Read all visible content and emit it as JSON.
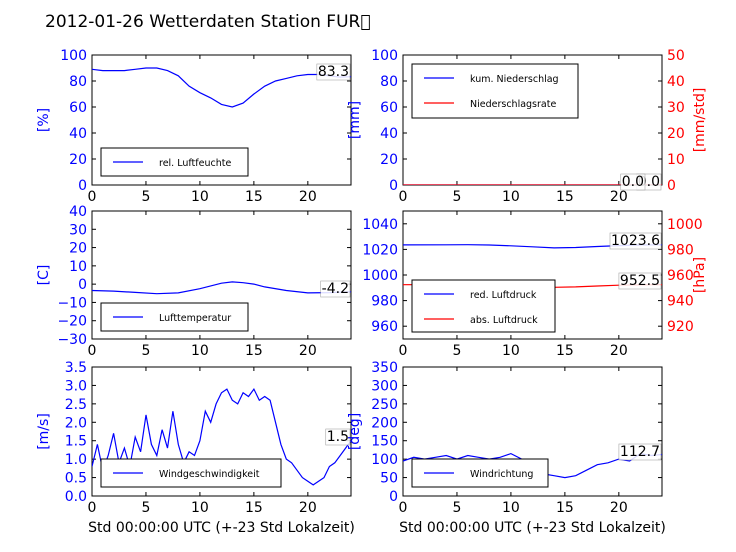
{
  "title": "2012-01-26 Wetterdaten Station FUR\u0000",
  "chart_data": [
    {
      "type": "line",
      "ylabel": "[%]",
      "xlabel": "",
      "xlim": [
        0,
        24
      ],
      "ylim": [
        0,
        100
      ],
      "xticks": [
        "0",
        "5",
        "10",
        "15",
        "20"
      ],
      "yticks": [
        "0",
        "20",
        "40",
        "60",
        "80",
        "100"
      ],
      "legend_position": "lower-left",
      "series": [
        {
          "name": "rel. Luftfeuchte",
          "color": "#0000ff",
          "x": [
            0,
            1,
            2,
            3,
            4,
            5,
            6,
            7,
            8,
            9,
            10,
            11,
            12,
            13,
            14,
            15,
            16,
            17,
            18,
            19,
            20,
            21,
            22,
            23,
            24
          ],
          "y": [
            89,
            88,
            88,
            88,
            89,
            90,
            90,
            88,
            84,
            76,
            71,
            67,
            62,
            60,
            63,
            70,
            76,
            80,
            82,
            84,
            85,
            85,
            84,
            83,
            83.3
          ]
        }
      ],
      "last_value_label": "83.3"
    },
    {
      "type": "line",
      "ylabel": "[mm]",
      "ylabel_right": "[mm/std]",
      "xlim": [
        0,
        24
      ],
      "ylim": [
        0,
        100
      ],
      "ylim_right": [
        0,
        50
      ],
      "xticks": [
        "0",
        "5",
        "10",
        "15",
        "20"
      ],
      "yticks": [
        "0",
        "20",
        "40",
        "60",
        "80",
        "100"
      ],
      "yticks_right": [
        "0",
        "10",
        "20",
        "30",
        "40",
        "50"
      ],
      "legend_position": "upper-left",
      "series": [
        {
          "name": "kum. Niederschlag",
          "color": "#0000ff",
          "axis": "left",
          "x": [
            0,
            24
          ],
          "y": [
            0,
            0
          ]
        },
        {
          "name": "Niederschlagsrate",
          "color": "#ff0000",
          "axis": "right",
          "x": [
            0,
            24
          ],
          "y": [
            0,
            0
          ]
        }
      ],
      "last_value_label": "0.0",
      "last_value_label_2": "0.0"
    },
    {
      "type": "line",
      "ylabel": "[C]",
      "xlim": [
        0,
        24
      ],
      "ylim": [
        -30,
        40
      ],
      "xticks": [
        "0",
        "5",
        "10",
        "15",
        "20"
      ],
      "yticks": [
        "−30",
        "−20",
        "−10",
        "0",
        "10",
        "20",
        "30",
        "40"
      ],
      "legend_position": "lower-left",
      "series": [
        {
          "name": "Lufttemperatur",
          "color": "#0000ff",
          "x": [
            0,
            2,
            4,
            6,
            8,
            10,
            12,
            13,
            14,
            15,
            16,
            18,
            20,
            22,
            24
          ],
          "y": [
            -3.5,
            -3.8,
            -4.5,
            -5.2,
            -4.8,
            -2.5,
            0.5,
            1.2,
            0.8,
            0,
            -1.5,
            -3.5,
            -4.8,
            -4.6,
            -4.2
          ]
        }
      ],
      "last_value_label": "-4.2"
    },
    {
      "type": "line",
      "ylabel": "",
      "ylabel_right": "[hPa]",
      "xlim": [
        0,
        24
      ],
      "ylim": [
        950,
        1050
      ],
      "ylim_right": [
        910,
        1010
      ],
      "xticks": [
        "0",
        "5",
        "10",
        "15",
        "20"
      ],
      "yticks": [
        "960",
        "980",
        "1000",
        "1020",
        "1040"
      ],
      "yticks_right": [
        "920",
        "940",
        "960",
        "980",
        "1000"
      ],
      "legend_position": "lower-left",
      "series": [
        {
          "name": "red. Luftdruck",
          "color": "#0000ff",
          "axis": "left",
          "x": [
            0,
            4,
            6,
            8,
            10,
            12,
            14,
            16,
            18,
            20,
            22,
            24
          ],
          "y": [
            1023.5,
            1023.6,
            1023.7,
            1023.4,
            1022.8,
            1022.0,
            1021.2,
            1021.5,
            1022.3,
            1023.0,
            1023.4,
            1023.6
          ]
        },
        {
          "name": "abs. Luftdruck",
          "color": "#ff0000",
          "axis": "right",
          "x": [
            0,
            4,
            6,
            8,
            10,
            12,
            14,
            16,
            18,
            20,
            22,
            24
          ],
          "y": [
            952.4,
            952.5,
            952.6,
            952.3,
            951.8,
            951.1,
            950.4,
            950.7,
            951.4,
            952.0,
            952.3,
            952.5
          ]
        }
      ],
      "last_value_label": "1023.6",
      "last_value_label_2": "952.5"
    },
    {
      "type": "line",
      "ylabel": "[m/s]",
      "xlabel": "Std 00:00:00 UTC (+-23 Std Lokalzeit)",
      "xlim": [
        0,
        24
      ],
      "ylim": [
        0,
        3.5
      ],
      "xticks": [
        "0",
        "5",
        "10",
        "15",
        "20"
      ],
      "yticks": [
        "0.0",
        "0.5",
        "1.0",
        "1.5",
        "2.0",
        "2.5",
        "3.0",
        "3.5"
      ],
      "legend_position": "lower-right",
      "series": [
        {
          "name": "Windgeschwindigkeit",
          "color": "#0000ff",
          "x": [
            0,
            0.5,
            1,
            1.5,
            2,
            2.5,
            3,
            3.5,
            4,
            4.5,
            5,
            5.5,
            6,
            6.5,
            7,
            7.5,
            8,
            8.5,
            9,
            9.5,
            10,
            10.5,
            11,
            11.5,
            12,
            12.5,
            13,
            13.5,
            14,
            14.5,
            15,
            15.5,
            16,
            16.5,
            17,
            17.5,
            18,
            18.5,
            19,
            19.5,
            20,
            20.5,
            21,
            21.5,
            22,
            22.5,
            23,
            23.5,
            24
          ],
          "y": [
            0.8,
            1.4,
            0.7,
            1.1,
            1.7,
            0.9,
            1.3,
            0.8,
            1.6,
            1.2,
            2.2,
            1.4,
            1.1,
            1.8,
            1.3,
            2.3,
            1.4,
            0.9,
            1.2,
            1.1,
            1.5,
            2.3,
            2.0,
            2.5,
            2.8,
            2.9,
            2.6,
            2.5,
            2.8,
            2.7,
            2.9,
            2.6,
            2.7,
            2.6,
            2.0,
            1.4,
            1.0,
            0.9,
            0.7,
            0.5,
            0.4,
            0.3,
            0.4,
            0.5,
            0.8,
            0.9,
            1.1,
            1.3,
            1.5
          ]
        }
      ],
      "last_value_label": "1.5"
    },
    {
      "type": "line",
      "ylabel": "[deg]",
      "xlabel": "Std 00:00:00 UTC (+-23 Std Lokalzeit)",
      "xlim": [
        0,
        24
      ],
      "ylim": [
        0,
        350
      ],
      "xticks": [
        "0",
        "5",
        "10",
        "15",
        "20"
      ],
      "yticks": [
        "0",
        "50",
        "100",
        "150",
        "200",
        "250",
        "300",
        "350"
      ],
      "legend_position": "lower-left",
      "series": [
        {
          "name": "Windrichtung",
          "color": "#0000ff",
          "x": [
            0,
            1,
            2,
            3,
            4,
            5,
            6,
            7,
            8,
            9,
            10,
            11,
            12,
            13,
            14,
            15,
            16,
            17,
            18,
            19,
            20,
            21,
            22,
            23,
            24
          ],
          "y": [
            95,
            105,
            100,
            105,
            110,
            100,
            110,
            105,
            100,
            105,
            115,
            100,
            65,
            60,
            55,
            50,
            55,
            70,
            85,
            90,
            100,
            95,
            115,
            110,
            112.7
          ]
        }
      ],
      "last_value_label": "112.7"
    }
  ]
}
